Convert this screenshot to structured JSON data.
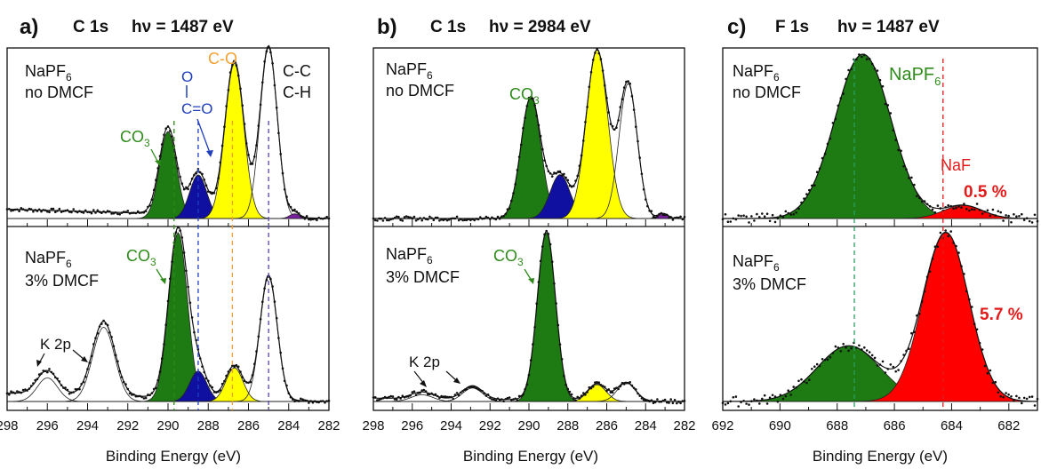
{
  "panels": [
    {
      "letter": "a)",
      "core": "C 1s",
      "hv_label": "hν = 1487 eV",
      "top": {
        "label": "NaPF",
        "label_sub": "6",
        "label2": "no DMCF",
        "annotations": [
          {
            "text": "CO",
            "sub": "3",
            "color": "#2e8b1a"
          },
          {
            "text": "O",
            "color": "#1f3fbf"
          },
          {
            "text": "C=O",
            "color": "#1f3fbf"
          },
          {
            "text": "C-O",
            "color": "#f0a030"
          },
          {
            "text": "C-C",
            "color": "#111111"
          },
          {
            "text": "C-H",
            "color": "#111111"
          }
        ]
      },
      "bottom": {
        "label": "NaPF",
        "label_sub": "6",
        "label2": "3% DMCF",
        "annotations": [
          {
            "text": "CO",
            "sub": "3",
            "color": "#2e8b1a"
          },
          {
            "text": "K 2p",
            "color": "#111111"
          }
        ]
      },
      "x_ticks": [
        "298",
        "296",
        "294",
        "292",
        "290",
        "288",
        "286",
        "284",
        "282"
      ],
      "x_label": "Binding Energy (eV)"
    },
    {
      "letter": "b)",
      "core": "C 1s",
      "hv_label": "hν = 2984 eV",
      "top": {
        "label": "NaPF",
        "label_sub": "6",
        "label2": "no DMCF",
        "annotations": [
          {
            "text": "CO",
            "sub": "3",
            "color": "#2e8b1a"
          }
        ]
      },
      "bottom": {
        "label": "NaPF",
        "label_sub": "6",
        "label2": "3% DMCF",
        "annotations": [
          {
            "text": "CO",
            "sub": "3",
            "color": "#2e8b1a"
          },
          {
            "text": "K 2p",
            "color": "#111111"
          }
        ]
      },
      "x_ticks": [
        "298",
        "296",
        "294",
        "292",
        "290",
        "288",
        "286",
        "284",
        "282"
      ],
      "x_label": "Binding Energy (eV)"
    },
    {
      "letter": "c)",
      "core": "F 1s",
      "hv_label": "hν = 1487 eV",
      "top": {
        "label": "NaPF",
        "label_sub": "6",
        "label2": "no DMCF",
        "annotations": [
          {
            "text": "NaPF",
            "sub": "6",
            "color": "#2e8b1a"
          },
          {
            "text": "NaF",
            "color": "#e31a1a"
          },
          {
            "text": "0.5 %",
            "color": "#e31a1a"
          }
        ]
      },
      "bottom": {
        "label": "NaPF",
        "label_sub": "6",
        "label2": "3% DMCF",
        "annotations": [
          {
            "text": "5.7 %",
            "color": "#e31a1a"
          }
        ]
      },
      "x_ticks": [
        "692",
        "690",
        "688",
        "686",
        "684",
        "682"
      ],
      "x_label": "Binding Energy (eV)"
    }
  ],
  "chart_data": [
    {
      "type": "area",
      "panel": "a) C 1s, hν = 1487 eV",
      "xlabel": "Binding Energy (eV)",
      "xlim": [
        298,
        282
      ],
      "x_reversed": true,
      "reference_lines": [
        289.7,
        288.5,
        286.8,
        285.0
      ],
      "spectra": [
        {
          "condition": "NaPF6 no DMCF",
          "background": 0.06,
          "components": [
            {
              "name": "CO3",
              "color": "#1e7a12",
              "center": 290.0,
              "height": 0.56,
              "fwhm": 1.0
            },
            {
              "name": "O-C=O",
              "color": "#1010a0",
              "center": 288.5,
              "height": 0.28,
              "fwhm": 1.0
            },
            {
              "name": "C-O",
              "color": "#ffff00",
              "center": 286.7,
              "height": 1.0,
              "fwhm": 1.1
            },
            {
              "name": "C-C C-H",
              "color": "#ffffff",
              "center": 285.0,
              "height": 1.1,
              "fwhm": 1.0
            },
            {
              "name": "",
              "color": "#7a1fa0",
              "center": 283.7,
              "height": 0.03,
              "fwhm": 0.6
            }
          ]
        },
        {
          "condition": "NaPF6 3% DMCF",
          "background": 0.05,
          "components": [
            {
              "name": "K 2p",
              "color": "#ffffff",
              "center": 296.0,
              "height": 0.14,
              "fwhm": 1.2
            },
            {
              "name": "K 2p",
              "color": "#ffffff",
              "center": 293.2,
              "height": 0.44,
              "fwhm": 1.3
            },
            {
              "name": "CO3",
              "color": "#1e7a12",
              "center": 289.5,
              "height": 1.0,
              "fwhm": 1.1
            },
            {
              "name": "O-C=O",
              "color": "#1010a0",
              "center": 288.5,
              "height": 0.18,
              "fwhm": 1.0
            },
            {
              "name": "C-O",
              "color": "#ffff00",
              "center": 286.7,
              "height": 0.2,
              "fwhm": 1.0
            },
            {
              "name": "C-C C-H",
              "color": "#ffffff",
              "center": 285.0,
              "height": 0.74,
              "fwhm": 1.0
            }
          ]
        }
      ]
    },
    {
      "type": "area",
      "panel": "b) C 1s, hν = 2984 eV",
      "xlabel": "Binding Energy (eV)",
      "xlim": [
        298,
        282
      ],
      "x_reversed": true,
      "reference_lines": [],
      "spectra": [
        {
          "condition": "NaPF6 no DMCF",
          "background": 0.0,
          "components": [
            {
              "name": "CO3",
              "color": "#1e7a12",
              "center": 289.9,
              "height": 0.72,
              "fwhm": 1.2
            },
            {
              "name": "O-C=O",
              "color": "#1010a0",
              "center": 288.4,
              "height": 0.26,
              "fwhm": 1.2
            },
            {
              "name": "C-O",
              "color": "#ffff00",
              "center": 286.5,
              "height": 1.0,
              "fwhm": 1.3
            },
            {
              "name": "C-C C-H",
              "color": "#ffffff",
              "center": 284.9,
              "height": 0.8,
              "fwhm": 1.1
            },
            {
              "name": "",
              "color": "#7a1fa0",
              "center": 283.1,
              "height": 0.03,
              "fwhm": 0.6
            }
          ]
        },
        {
          "condition": "NaPF6 3% DMCF",
          "background": 0.02,
          "components": [
            {
              "name": "K 2p",
              "color": "#ffffff",
              "center": 295.5,
              "height": 0.04,
              "fwhm": 1.3
            },
            {
              "name": "K 2p",
              "color": "#ffffff",
              "center": 292.9,
              "height": 0.08,
              "fwhm": 1.2
            },
            {
              "name": "CO3",
              "color": "#1e7a12",
              "center": 289.1,
              "height": 1.0,
              "fwhm": 1.1
            },
            {
              "name": "C-O",
              "color": "#ffff00",
              "center": 286.5,
              "height": 0.1,
              "fwhm": 1.1
            },
            {
              "name": "C-C C-H",
              "color": "#ffffff",
              "center": 285.0,
              "height": 0.11,
              "fwhm": 1.1
            }
          ]
        }
      ]
    },
    {
      "type": "area",
      "panel": "c) F 1s, hν = 1487 eV",
      "xlabel": "Binding Energy (eV)",
      "xlim": [
        692,
        681
      ],
      "x_reversed": true,
      "reference_lines": [
        687.4,
        684.3
      ],
      "spectra": [
        {
          "condition": "NaPF6 no DMCF",
          "background": 0.0,
          "components": [
            {
              "name": "NaPF6",
              "color": "#1e7a12",
              "center": 687.1,
              "height": 1.0,
              "fwhm": 2.3
            },
            {
              "name": "NaF",
              "color": "#ff0000",
              "center": 683.6,
              "height": 0.08,
              "fwhm": 1.6
            }
          ]
        },
        {
          "condition": "NaPF6 3% DMCF",
          "background": 0.0,
          "components": [
            {
              "name": "NaPF6",
              "color": "#1e7a12",
              "center": 687.6,
              "height": 0.33,
              "fwhm": 2.6
            },
            {
              "name": "NaF",
              "color": "#ff0000",
              "center": 684.2,
              "height": 1.0,
              "fwhm": 1.9
            }
          ]
        }
      ]
    }
  ]
}
